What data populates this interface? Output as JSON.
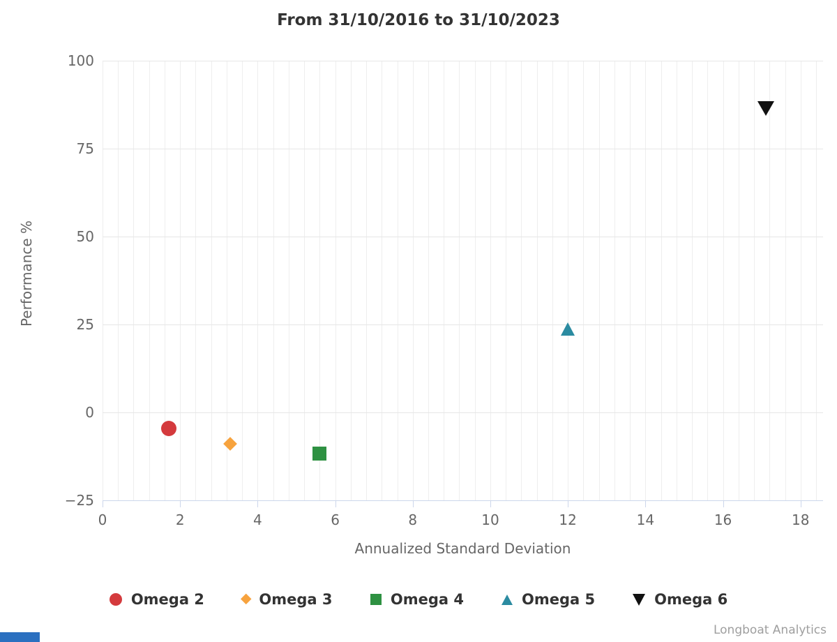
{
  "title": "From 31/10/2016 to 31/10/2023",
  "credits": "Longboat Analytics",
  "chart_data": {
    "type": "scatter",
    "title": "From 31/10/2016 to 31/10/2023",
    "xlabel": "Annualized Standard Deviation",
    "ylabel": "Performance %",
    "xlim": [
      0,
      18.58
    ],
    "ylim": [
      -25,
      100
    ],
    "x_ticks": [
      0,
      2,
      4,
      6,
      8,
      10,
      12,
      14,
      16,
      18
    ],
    "y_ticks": [
      -25,
      0,
      25,
      50,
      75,
      100
    ],
    "x_minor_interval": 0.4,
    "grid": true,
    "legend_position": "bottom",
    "axis_line_color": "#ccd6eb",
    "grid_color": "#e6e6e6",
    "minor_grid_color": "#eeeeee",
    "series": [
      {
        "name": "Omega 2",
        "marker": "circle",
        "color": "#d43a3d",
        "points": [
          {
            "x": 1.7,
            "y": -4.5
          }
        ]
      },
      {
        "name": "Omega 3",
        "marker": "diamond",
        "color": "#f7a33e",
        "points": [
          {
            "x": 3.3,
            "y": -9.0
          }
        ]
      },
      {
        "name": "Omega 4",
        "marker": "square",
        "color": "#2e9142",
        "points": [
          {
            "x": 5.6,
            "y": -11.7
          }
        ]
      },
      {
        "name": "Omega 5",
        "marker": "triangle-up",
        "color": "#2b8ba1",
        "points": [
          {
            "x": 12.0,
            "y": 23.7
          }
        ]
      },
      {
        "name": "Omega 6",
        "marker": "triangle-down",
        "color": "#111111",
        "points": [
          {
            "x": 17.1,
            "y": 86.5
          }
        ]
      }
    ]
  },
  "footer": {
    "accent_bar_color": "#2b70c0"
  }
}
